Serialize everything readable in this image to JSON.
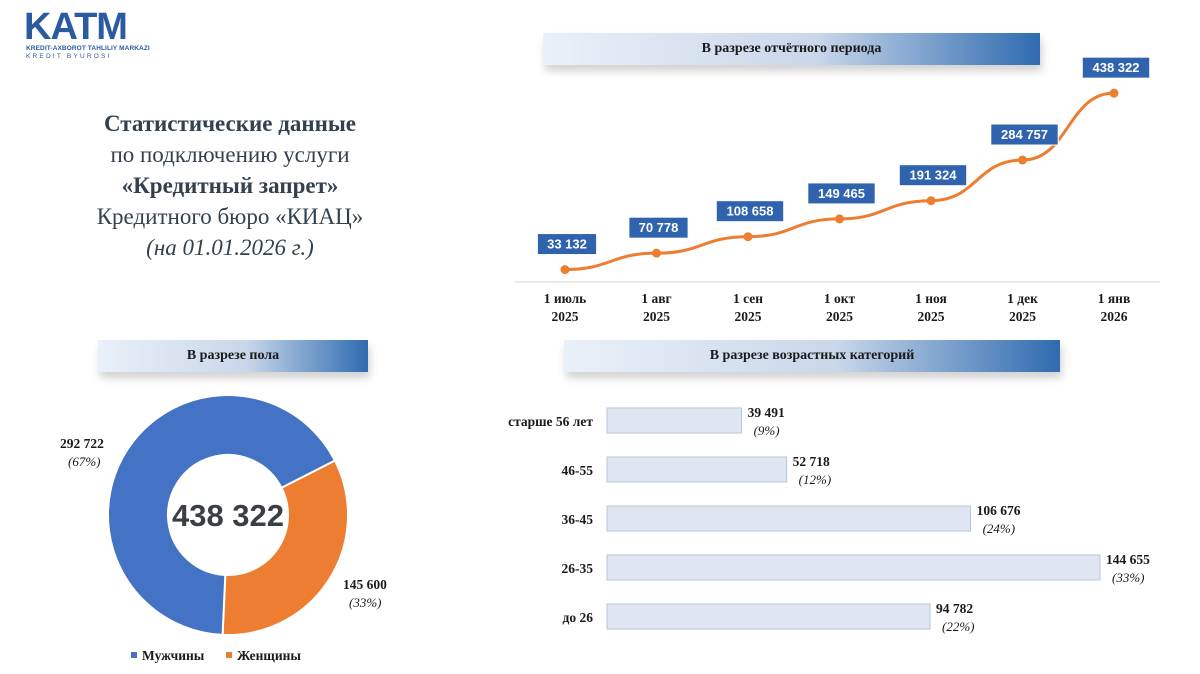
{
  "logo": {
    "main": "KATM",
    "line1": "KREDIT-AXBOROT TAHLILIY MARKAZI",
    "line2": "KREDIT BYUROSI"
  },
  "header": {
    "line1": "Статистические данные",
    "line2": "по подключению услуги",
    "line3": "«Кредитный запрет»",
    "line4": "Кредитного бюро «КИАЦ»",
    "line5": "(на 01.01.2026 г.)"
  },
  "banners": {
    "period": "В разрезе отчётного периода",
    "gender": "В разрезе пола",
    "age": "В разрезе возрастных категорий"
  },
  "colors": {
    "accent_blue": "#4472c4",
    "accent_orange": "#ed7d31",
    "label_box": "#2f63ae",
    "bar_fill": "#dfe6f1"
  },
  "chart_data": [
    {
      "type": "line",
      "title": "В разрезе отчётного периода",
      "categories": [
        [
          "1 июль",
          "2025"
        ],
        [
          "1 авг",
          "2025"
        ],
        [
          "1 сен",
          "2025"
        ],
        [
          "1 окт",
          "2025"
        ],
        [
          "1 ноя",
          "2025"
        ],
        [
          "1 дек",
          "2025"
        ],
        [
          "1 янв",
          "2026"
        ]
      ],
      "values": [
        33132,
        70778,
        108658,
        149465,
        191324,
        284757,
        438322
      ],
      "labels": [
        "33 132",
        "70 778",
        "108 658",
        "149 465",
        "191 324",
        "284 757",
        "438 322"
      ],
      "ylim": [
        0,
        480000
      ],
      "grid": false,
      "color": "#ed7d31"
    },
    {
      "type": "pie",
      "variant": "donut",
      "title": "В разрезе пола",
      "center_label": "438 322",
      "slices": [
        {
          "name": "Мужчины",
          "value": 292722,
          "value_label": "292 722",
          "pct_label": "(67%)",
          "color": "#4472c4"
        },
        {
          "name": "Женщины",
          "value": 145600,
          "value_label": "145 600",
          "pct_label": "(33%)",
          "color": "#ed7d31"
        }
      ],
      "legend": "bottom"
    },
    {
      "type": "bar",
      "orientation": "horizontal",
      "title": "В разрезе возрастных категорий",
      "categories": [
        "старше 56 лет",
        "46-55",
        "36-45",
        "26-35",
        "до 26"
      ],
      "values": [
        39491,
        52718,
        106676,
        144655,
        94782
      ],
      "value_labels": [
        "39 491",
        "52 718",
        "106 676",
        "144 655",
        "94 782"
      ],
      "pct_labels": [
        "(9%)",
        "(12%)",
        "(24%)",
        "(33%)",
        "(22%)"
      ],
      "xlim": [
        0,
        144655
      ]
    }
  ]
}
